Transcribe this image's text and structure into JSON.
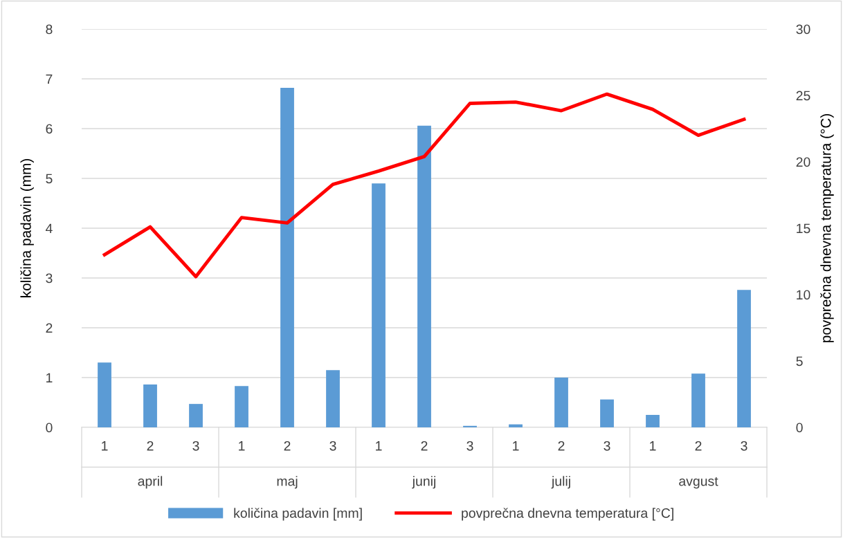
{
  "chart_data": {
    "type": "bar",
    "categories": [
      "1",
      "2",
      "3",
      "1",
      "2",
      "3",
      "1",
      "2",
      "3",
      "1",
      "2",
      "3",
      "1",
      "2",
      "3"
    ],
    "series": [
      {
        "name": "količina padavin [mm]",
        "color": "#5b9bd5",
        "values": [
          1.3,
          0.86,
          0.47,
          0.83,
          6.82,
          1.15,
          4.9,
          6.06,
          0.03,
          0.06,
          1.0,
          0.56,
          0.25,
          1.08,
          2.76
        ]
      },
      {
        "name": "povprečna dnevna temperatura [°C]",
        "type": "line",
        "axis": "y2",
        "color": "#ff0000",
        "values": [
          13.0,
          15.1,
          11.35,
          15.8,
          15.4,
          18.3,
          19.3,
          20.4,
          24.4,
          24.5,
          23.85,
          25.1,
          23.95,
          22.0,
          23.2
        ]
      }
    ],
    "ylabel": "količina padavin (mm)",
    "y2label": "povprečna dnevna temperatura (°C)",
    "ylim": [
      0,
      8
    ],
    "yticks": [
      0,
      1,
      2,
      3,
      4,
      5,
      6,
      7,
      8
    ],
    "y2lim": [
      0,
      30
    ],
    "y2ticks": [
      0,
      5,
      10,
      15,
      20,
      25,
      30
    ],
    "annotations": [
      "april",
      "maj",
      "junij",
      "julij",
      "avgust"
    ],
    "grid": "y",
    "legend": "bottom",
    "marker": "none",
    "line_style": "solid"
  }
}
